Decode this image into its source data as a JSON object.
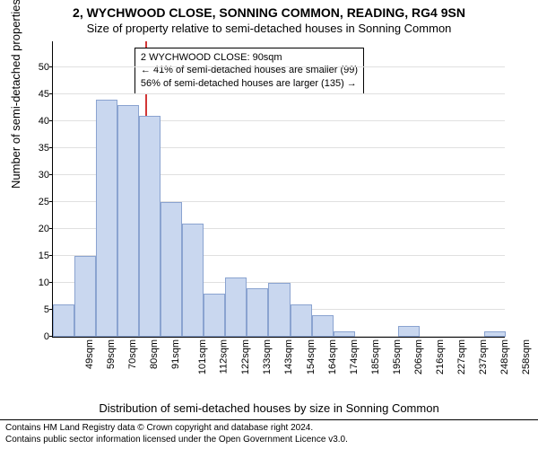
{
  "title": {
    "main": "2, WYCHWOOD CLOSE, SONNING COMMON, READING, RG4 9SN",
    "sub": "Size of property relative to semi-detached houses in Sonning Common",
    "fontsize_main": 14,
    "fontsize_sub": 13
  },
  "chart": {
    "type": "histogram",
    "background_color": "#ffffff",
    "grid_color": "#e0e0e0",
    "axis_color": "#000000",
    "bar_fill": "#c9d7ef",
    "bar_border": "#8aa3d0",
    "bar_width_ratio": 1.0,
    "ylim": [
      0,
      55
    ],
    "yticks": [
      0,
      5,
      10,
      15,
      20,
      25,
      30,
      35,
      40,
      45,
      50
    ],
    "ylabel": "Number of semi-detached properties",
    "xlabel": "Distribution of semi-detached houses by size in Sonning Common",
    "categories": [
      "49sqm",
      "59sqm",
      "70sqm",
      "80sqm",
      "91sqm",
      "101sqm",
      "112sqm",
      "122sqm",
      "133sqm",
      "143sqm",
      "154sqm",
      "164sqm",
      "174sqm",
      "185sqm",
      "195sqm",
      "206sqm",
      "216sqm",
      "227sqm",
      "237sqm",
      "248sqm",
      "258sqm"
    ],
    "values": [
      6,
      15,
      44,
      43,
      41,
      25,
      21,
      8,
      11,
      9,
      10,
      6,
      4,
      1,
      0,
      0,
      2,
      0,
      0,
      0,
      1
    ],
    "reference_line": {
      "color": "#d23636",
      "x_value_label": "91sqm",
      "x_position_ratio": 0.203
    },
    "infobox": {
      "line1": "2 WYCHWOOD CLOSE: 90sqm",
      "line2": "← 41% of semi-detached houses are smaller (99)",
      "line3": "56% of semi-detached houses are larger (135) →",
      "border_color": "#000000",
      "bg_color": "#ffffff",
      "fontsize": 11,
      "left_ratio": 0.18,
      "top_ratio": 0.02
    },
    "tick_fontsize": 11,
    "axis_label_fontsize": 13
  },
  "footer": {
    "line1": "Contains HM Land Registry data © Crown copyright and database right 2024.",
    "line2": "Contains public sector information licensed under the Open Government Licence v3.0.",
    "fontsize": 10
  }
}
